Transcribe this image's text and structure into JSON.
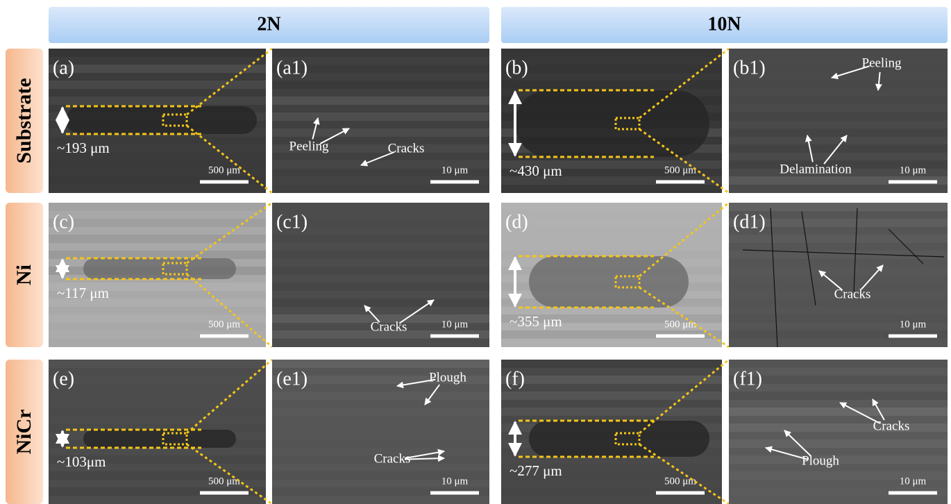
{
  "columns": [
    "2N",
    "10N"
  ],
  "rows": [
    {
      "label": "Substrate",
      "panels": [
        {
          "label": "(a)",
          "width": "~193 μm",
          "scale": "500 μm"
        },
        {
          "label": "(a1)",
          "scale": "10 μm",
          "annotations": [
            "Peeling",
            "Cracks"
          ]
        },
        {
          "label": "(b)",
          "width": "~430 μm",
          "scale": "500 μm"
        },
        {
          "label": "(b1)",
          "scale": "10 μm",
          "annotations": [
            "Peeling",
            "Delamination"
          ]
        }
      ]
    },
    {
      "label": "Ni",
      "panels": [
        {
          "label": "(c)",
          "width": "~117 μm",
          "scale": "500 μm"
        },
        {
          "label": "(c1)",
          "scale": "10 μm",
          "annotations": [
            "Cracks"
          ]
        },
        {
          "label": "(d)",
          "width": "~355 μm",
          "scale": "500 μm"
        },
        {
          "label": "(d1)",
          "scale": "10 μm",
          "annotations": [
            "Cracks"
          ]
        }
      ]
    },
    {
      "label": "NiCr",
      "panels": [
        {
          "label": "(e)",
          "width": "~103μm",
          "scale": "500 μm"
        },
        {
          "label": "(e1)",
          "scale": "10 μm",
          "annotations": [
            "Plough",
            "Cracks"
          ]
        },
        {
          "label": "(f)",
          "width": "~277 μm",
          "scale": "500 μm"
        },
        {
          "label": "(f1)",
          "scale": "10 μm",
          "annotations": [
            "Cracks",
            "Plough"
          ]
        }
      ]
    }
  ]
}
